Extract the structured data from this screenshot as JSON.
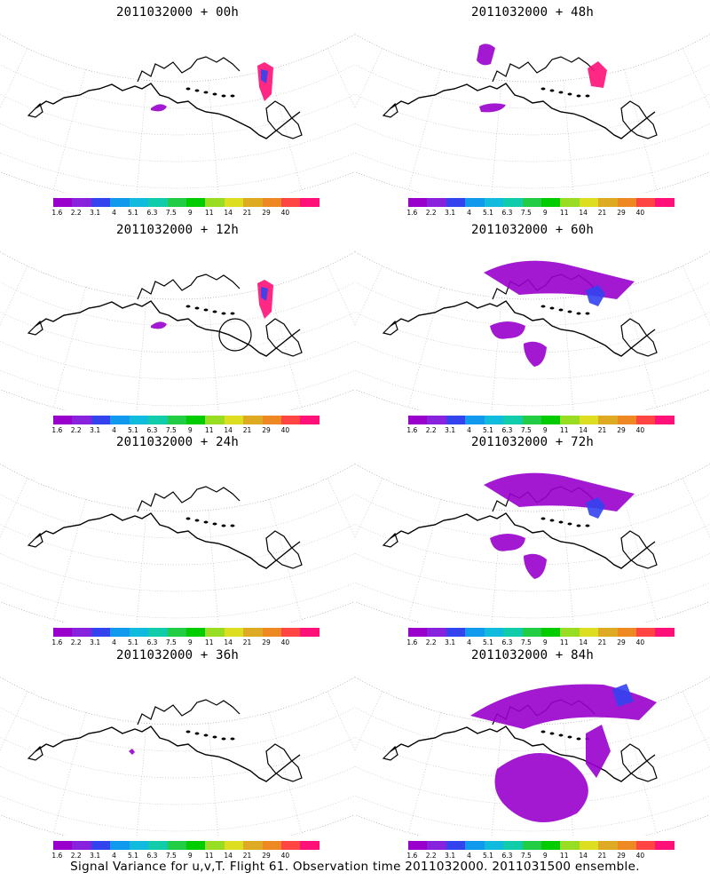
{
  "panels": [
    {
      "title": "2011032000 + 00h",
      "extent": "small"
    },
    {
      "title": "2011032000 + 48h",
      "extent": "medium"
    },
    {
      "title": "2011032000 + 12h",
      "extent": "small"
    },
    {
      "title": "2011032000 + 60h",
      "extent": "large"
    },
    {
      "title": "2011032000 + 24h",
      "extent": "none"
    },
    {
      "title": "2011032000 + 72h",
      "extent": "large"
    },
    {
      "title": "2011032000 + 36h",
      "extent": "tiny"
    },
    {
      "title": "2011032000 + 84h",
      "extent": "xlarge"
    }
  ],
  "colorbar": {
    "labels": [
      "1.6",
      "2.2",
      "3.1",
      "4",
      "5.1",
      "6.3",
      "7.5",
      "9",
      "11",
      "14",
      "21",
      "29",
      "40"
    ],
    "colors": [
      "#9900cc",
      "#8822dd",
      "#3344ee",
      "#1199ee",
      "#11bbdd",
      "#11ccaa",
      "#22cc44",
      "#00cc00",
      "#99dd22",
      "#dddd22",
      "#ddaa22",
      "#ee8822",
      "#ff4444",
      "#ff1177"
    ]
  },
  "footer": "Signal Variance for u,v,T. Flight 61. Observation time 2011032000. 2011031500 ensemble."
}
